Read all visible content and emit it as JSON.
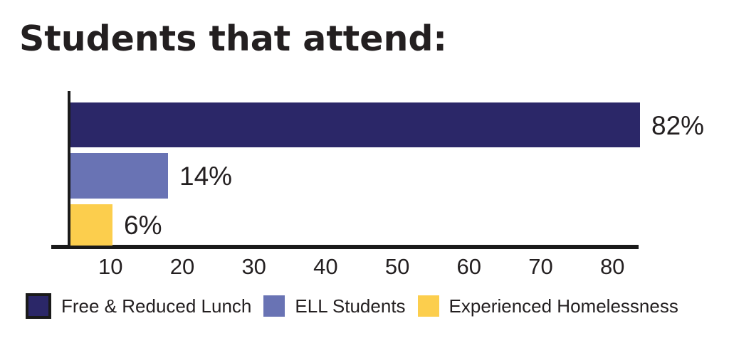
{
  "chart_data": {
    "type": "bar",
    "orientation": "horizontal",
    "title": "Students that attend:",
    "categories": [
      "Free & Reduced Lunch",
      "ELL Students",
      "Experienced Homelessness"
    ],
    "values": [
      82,
      14,
      6
    ],
    "value_labels": [
      "82%",
      "14%",
      "6%"
    ],
    "colors": [
      "#2b2768",
      "#6973b4",
      "#fcce4d"
    ],
    "x_ticks": [
      10,
      20,
      30,
      40,
      50,
      60,
      70,
      80
    ],
    "xlim": [
      0,
      85
    ],
    "xlabel": "",
    "ylabel": "",
    "grid": false,
    "legend_position": "bottom",
    "axis_color": "#1a1a1a",
    "text_color": "#231f20",
    "background_color": "#ffffff"
  }
}
